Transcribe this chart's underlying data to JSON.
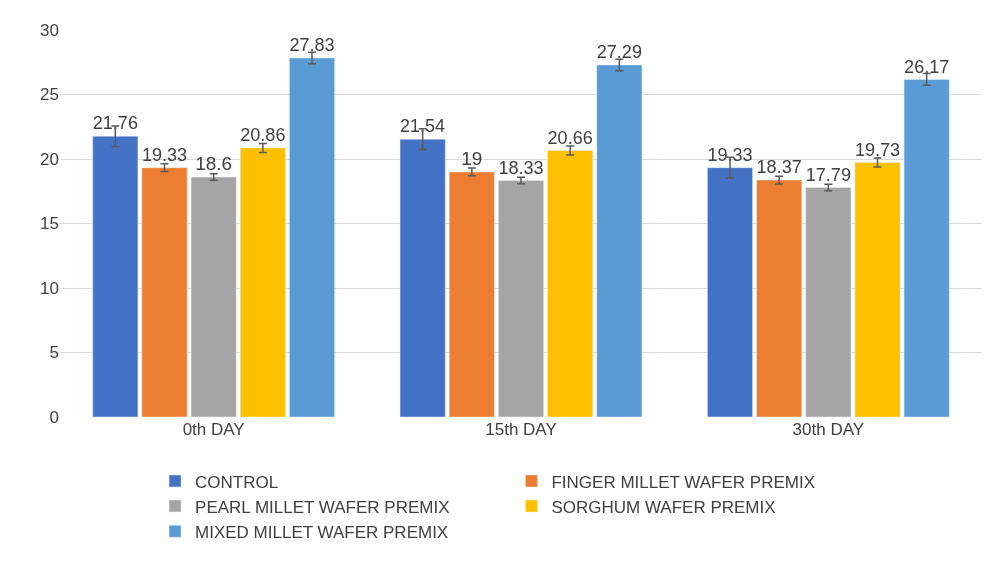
{
  "chart_data": {
    "type": "bar",
    "categories": [
      "0th DAY",
      "15th DAY",
      "30th DAY"
    ],
    "series": [
      {
        "name": "CONTROL",
        "color": "#4472c4",
        "values": [
          21.76,
          21.54,
          19.33
        ],
        "errors": [
          0.8,
          0.8,
          0.8
        ]
      },
      {
        "name": "FINGER MILLET WAFER PREMIX",
        "color": "#ed7d31",
        "values": [
          19.33,
          19,
          18.37
        ],
        "errors": [
          0.3,
          0.3,
          0.3
        ]
      },
      {
        "name": "PEARL MILLET WAFER PREMIX",
        "color": "#a5a5a5",
        "values": [
          18.6,
          18.33,
          17.79
        ],
        "errors": [
          0.25,
          0.25,
          0.25
        ]
      },
      {
        "name": "SORGHUM WAFER PREMIX",
        "color": "#ffc000",
        "values": [
          20.86,
          20.66,
          19.73
        ],
        "errors": [
          0.35,
          0.35,
          0.35
        ]
      },
      {
        "name": "MIXED MILLET WAFER PREMIX",
        "color": "#5b9bd5",
        "values": [
          27.83,
          27.29,
          26.17
        ],
        "errors": [
          0.45,
          0.45,
          0.45
        ]
      }
    ],
    "ylim": [
      0,
      30
    ],
    "yticks": [
      0,
      5,
      10,
      15,
      20,
      25,
      30
    ],
    "grid": "y",
    "legend": "bottom",
    "data_labels": true
  }
}
